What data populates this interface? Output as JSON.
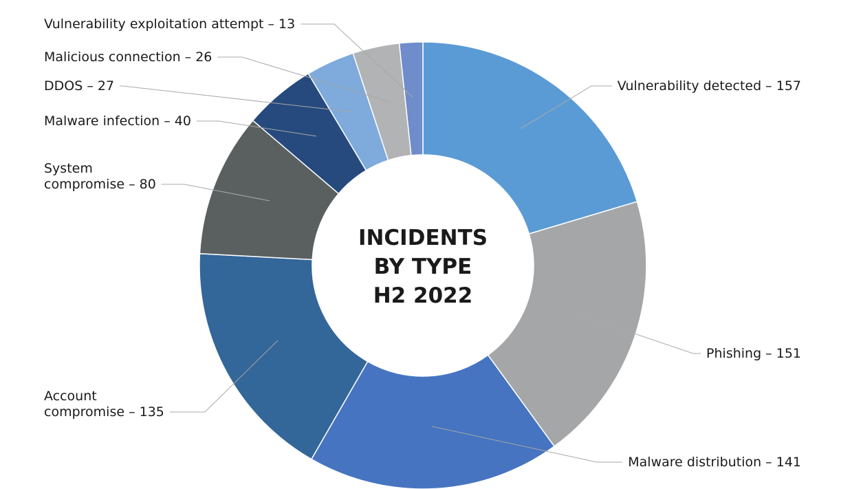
{
  "chart_data": {
    "type": "pie",
    "title": "INCIDENTS BY TYPE H2 2022",
    "center_lines": [
      "INCIDENTS",
      "BY TYPE",
      "H2 2022"
    ],
    "slices": [
      {
        "category": "Vulnerability detected",
        "value": 157,
        "color": "#5b9bd5",
        "label_lines": [
          "Vulnerability detected – 157"
        ]
      },
      {
        "category": "Phishing",
        "value": 151,
        "color": "#a5a6a8",
        "label_lines": [
          "Phishing – 151"
        ]
      },
      {
        "category": "Malware distribution",
        "value": 141,
        "color": "#4674c1",
        "label_lines": [
          "Malware distribution – 141"
        ]
      },
      {
        "category": "Account compromise",
        "value": 135,
        "color": "#336699",
        "label_lines": [
          "Account",
          "compromise – 135"
        ]
      },
      {
        "category": "System compromise",
        "value": 80,
        "color": "#5a6060",
        "label_lines": [
          "System",
          "compromise – 80"
        ]
      },
      {
        "category": "Malware infection",
        "value": 40,
        "color": "#264a7d",
        "label_lines": [
          "Malware infection – 40"
        ]
      },
      {
        "category": "DDOS",
        "value": 27,
        "color": "#7eaadc",
        "label_lines": [
          "DDOS – 27"
        ]
      },
      {
        "category": "Malicious connection",
        "value": 26,
        "color": "#b1b3b4",
        "label_lines": [
          "Malicious connection – 26"
        ]
      },
      {
        "category": "Vulnerability exploitation attempt",
        "value": 13,
        "color": "#6f8ccb",
        "label_lines": [
          "Vulnerability exploitation attempt – 13"
        ]
      }
    ]
  }
}
